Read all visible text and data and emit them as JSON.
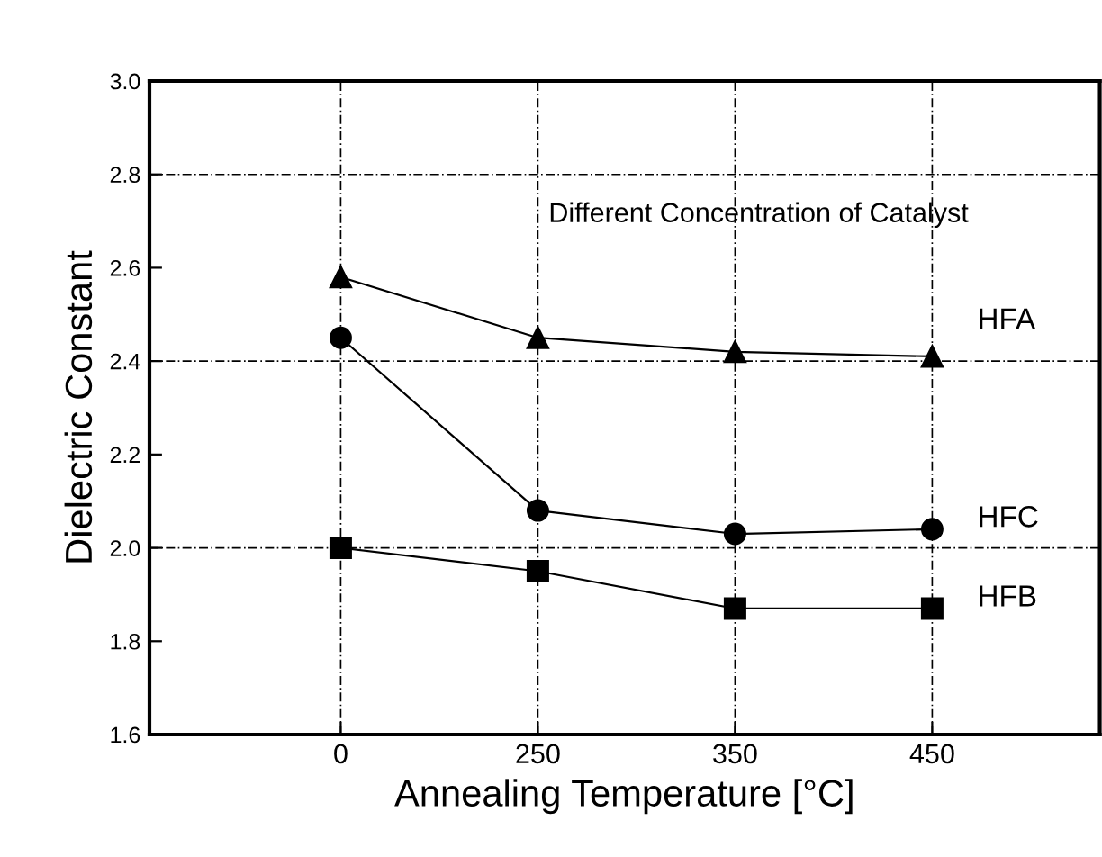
{
  "chart_data": {
    "type": "line",
    "xlabel": "Annealing Temperature [°C]",
    "ylabel": "Dielectric Constant",
    "categories": [
      "0",
      "250",
      "350",
      "450"
    ],
    "series": [
      {
        "name": "HFA",
        "color": "#000000",
        "marker": "triangle",
        "values": [
          2.58,
          2.45,
          2.42,
          2.41
        ]
      },
      {
        "name": "HFC",
        "color": "#000000",
        "marker": "circle",
        "values": [
          2.45,
          2.08,
          2.03,
          2.04
        ]
      },
      {
        "name": "HFB",
        "color": "#000000",
        "marker": "square",
        "values": [
          2.0,
          1.95,
          1.87,
          1.87
        ]
      }
    ],
    "ylim": [
      1.6,
      3.0
    ],
    "yticks": [
      1.6,
      1.8,
      {
        "value": 2,
        "label": "2.0"
      },
      2.2,
      2.4,
      2.6,
      2.8,
      {
        "value": 3,
        "label": "3.0"
      }
    ],
    "grid": "x",
    "legend": false,
    "line_style": "solid",
    "ref_lines": [
      {
        "axis": "y",
        "value": 2.0,
        "line_style": "dashed"
      },
      {
        "axis": "y",
        "value": 2.4,
        "line_style": "dashed"
      },
      {
        "axis": "y",
        "value": 2.8,
        "line_style": "dashed"
      }
    ],
    "annotations": [
      "Different Concentration of Catalyst"
    ]
  }
}
